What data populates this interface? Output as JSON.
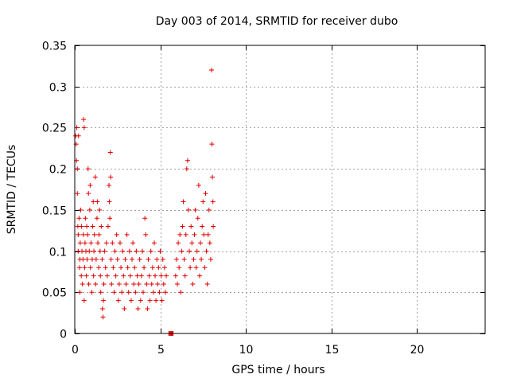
{
  "chart_data": {
    "type": "scatter",
    "title": "Day 003 of 2014, SRMTID for receiver dubo",
    "xlabel": "GPS time / hours",
    "ylabel": "SRMTID / TECUs",
    "xlim": [
      0,
      24
    ],
    "ylim": [
      0,
      0.35
    ],
    "xticks": [
      0,
      5,
      10,
      15,
      20
    ],
    "xtick_labels": [
      "0",
      "5",
      "10",
      "15",
      "20"
    ],
    "yticks": [
      0,
      0.05,
      0.1,
      0.15,
      0.2,
      0.25,
      0.3,
      0.35
    ],
    "ytick_labels": [
      "0",
      "0.05",
      "0.1",
      "0.15",
      "0.2",
      "0.25",
      "0.3",
      "0.35"
    ],
    "grid": true,
    "marker": "+",
    "color": "#e00000",
    "series": [
      {
        "name": "SRMTID",
        "points": [
          [
            0.05,
            0.24
          ],
          [
            0.08,
            0.23
          ],
          [
            0.1,
            0.21
          ],
          [
            0.12,
            0.25
          ],
          [
            0.15,
            0.2
          ],
          [
            0.15,
            0.17
          ],
          [
            0.18,
            0.13
          ],
          [
            0.2,
            0.1
          ],
          [
            0.2,
            0.12
          ],
          [
            0.22,
            0.24
          ],
          [
            0.25,
            0.14
          ],
          [
            0.28,
            0.08
          ],
          [
            0.3,
            0.05
          ],
          [
            0.3,
            0.09
          ],
          [
            0.32,
            0.11
          ],
          [
            0.35,
            0.15
          ],
          [
            0.38,
            0.07
          ],
          [
            0.4,
            0.13
          ],
          [
            0.42,
            0.1
          ],
          [
            0.45,
            0.06
          ],
          [
            0.48,
            0.09
          ],
          [
            0.5,
            0.12
          ],
          [
            0.52,
            0.26
          ],
          [
            0.55,
            0.25
          ],
          [
            0.55,
            0.04
          ],
          [
            0.58,
            0.08
          ],
          [
            0.6,
            0.11
          ],
          [
            0.62,
            0.14
          ],
          [
            0.65,
            0.1
          ],
          [
            0.68,
            0.07
          ],
          [
            0.7,
            0.13
          ],
          [
            0.72,
            0.09
          ],
          [
            0.75,
            0.12
          ],
          [
            0.78,
            0.2
          ],
          [
            0.8,
            0.17
          ],
          [
            0.82,
            0.06
          ],
          [
            0.85,
            0.1
          ],
          [
            0.88,
            0.15
          ],
          [
            0.9,
            0.18
          ],
          [
            0.92,
            0.08
          ],
          [
            0.95,
            0.11
          ],
          [
            1.0,
            0.05
          ],
          [
            1.02,
            0.09
          ],
          [
            1.05,
            0.13
          ],
          [
            1.08,
            0.16
          ],
          [
            1.1,
            0.07
          ],
          [
            1.12,
            0.1
          ],
          [
            1.15,
            0.12
          ],
          [
            1.2,
            0.19
          ],
          [
            1.22,
            0.06
          ],
          [
            1.25,
            0.09
          ],
          [
            1.3,
            0.14
          ],
          [
            1.32,
            0.16
          ],
          [
            1.35,
            0.11
          ],
          [
            1.4,
            0.08
          ],
          [
            1.42,
            0.12
          ],
          [
            1.45,
            0.15
          ],
          [
            1.48,
            0.1
          ],
          [
            1.5,
            0.07
          ],
          [
            1.52,
            0.05
          ],
          [
            1.55,
            0.13
          ],
          [
            1.6,
            0.09
          ],
          [
            1.62,
            0.03
          ],
          [
            1.65,
            0.02
          ],
          [
            1.68,
            0.04
          ],
          [
            1.7,
            0.06
          ],
          [
            1.75,
            0.1
          ],
          [
            1.8,
            0.08
          ],
          [
            1.85,
            0.11
          ],
          [
            1.9,
            0.07
          ],
          [
            1.95,
            0.13
          ],
          [
            2.0,
            0.18
          ],
          [
            2.02,
            0.16
          ],
          [
            2.05,
            0.14
          ],
          [
            2.08,
            0.22
          ],
          [
            2.1,
            0.19
          ],
          [
            2.12,
            0.09
          ],
          [
            2.15,
            0.06
          ],
          [
            2.2,
            0.11
          ],
          [
            2.25,
            0.08
          ],
          [
            2.3,
            0.05
          ],
          [
            2.35,
            0.1
          ],
          [
            2.4,
            0.07
          ],
          [
            2.45,
            0.12
          ],
          [
            2.5,
            0.09
          ],
          [
            2.55,
            0.04
          ],
          [
            2.6,
            0.06
          ],
          [
            2.65,
            0.11
          ],
          [
            2.7,
            0.08
          ],
          [
            2.75,
            0.05
          ],
          [
            2.8,
            0.1
          ],
          [
            2.85,
            0.07
          ],
          [
            2.9,
            0.03
          ],
          [
            2.95,
            0.09
          ],
          [
            3.0,
            0.06
          ],
          [
            3.05,
            0.12
          ],
          [
            3.1,
            0.08
          ],
          [
            3.15,
            0.05
          ],
          [
            3.2,
            0.1
          ],
          [
            3.25,
            0.07
          ],
          [
            3.3,
            0.04
          ],
          [
            3.35,
            0.09
          ],
          [
            3.4,
            0.11
          ],
          [
            3.45,
            0.06
          ],
          [
            3.5,
            0.08
          ],
          [
            3.55,
            0.05
          ],
          [
            3.6,
            0.1
          ],
          [
            3.65,
            0.07
          ],
          [
            3.7,
            0.03
          ],
          [
            3.75,
            0.06
          ],
          [
            3.8,
            0.09
          ],
          [
            3.85,
            0.04
          ],
          [
            3.9,
            0.07
          ],
          [
            3.95,
            0.1
          ],
          [
            4.0,
            0.05
          ],
          [
            4.05,
            0.08
          ],
          [
            4.1,
            0.14
          ],
          [
            4.15,
            0.12
          ],
          [
            4.2,
            0.06
          ],
          [
            4.25,
            0.03
          ],
          [
            4.3,
            0.09
          ],
          [
            4.35,
            0.07
          ],
          [
            4.4,
            0.04
          ],
          [
            4.45,
            0.1
          ],
          [
            4.5,
            0.06
          ],
          [
            4.55,
            0.08
          ],
          [
            4.6,
            0.05
          ],
          [
            4.65,
            0.11
          ],
          [
            4.7,
            0.07
          ],
          [
            4.75,
            0.04
          ],
          [
            4.8,
            0.09
          ],
          [
            4.85,
            0.06
          ],
          [
            4.9,
            0.08
          ],
          [
            4.95,
            0.05
          ],
          [
            5.0,
            0.1
          ],
          [
            5.05,
            0.07
          ],
          [
            5.1,
            0.04
          ],
          [
            5.15,
            0.09
          ],
          [
            5.2,
            0.06
          ],
          [
            5.25,
            0.08
          ],
          [
            5.3,
            0.05
          ],
          [
            5.35,
            0.07
          ],
          [
            5.5,
            0.0
          ],
          [
            5.55,
            0.0
          ],
          [
            5.6,
            0.0
          ],
          [
            5.65,
            0.0
          ],
          [
            5.7,
            0.0
          ],
          [
            5.75,
            0.0
          ],
          [
            5.9,
            0.07
          ],
          [
            5.95,
            0.09
          ],
          [
            6.0,
            0.06
          ],
          [
            6.05,
            0.11
          ],
          [
            6.1,
            0.08
          ],
          [
            6.15,
            0.12
          ],
          [
            6.2,
            0.05
          ],
          [
            6.25,
            0.1
          ],
          [
            6.3,
            0.13
          ],
          [
            6.35,
            0.16
          ],
          [
            6.4,
            0.09
          ],
          [
            6.45,
            0.07
          ],
          [
            6.5,
            0.12
          ],
          [
            6.55,
            0.2
          ],
          [
            6.6,
            0.21
          ],
          [
            6.65,
            0.15
          ],
          [
            6.7,
            0.1
          ],
          [
            6.75,
            0.08
          ],
          [
            6.8,
            0.13
          ],
          [
            6.85,
            0.11
          ],
          [
            6.9,
            0.06
          ],
          [
            6.95,
            0.09
          ],
          [
            7.0,
            0.12
          ],
          [
            7.05,
            0.15
          ],
          [
            7.1,
            0.08
          ],
          [
            7.15,
            0.1
          ],
          [
            7.2,
            0.14
          ],
          [
            7.25,
            0.18
          ],
          [
            7.3,
            0.07
          ],
          [
            7.35,
            0.11
          ],
          [
            7.4,
            0.09
          ],
          [
            7.45,
            0.13
          ],
          [
            7.5,
            0.16
          ],
          [
            7.55,
            0.12
          ],
          [
            7.6,
            0.08
          ],
          [
            7.65,
            0.17
          ],
          [
            7.7,
            0.1
          ],
          [
            7.75,
            0.06
          ],
          [
            7.8,
            0.12
          ],
          [
            7.85,
            0.15
          ],
          [
            7.9,
            0.11
          ],
          [
            7.95,
            0.09
          ],
          [
            8.0,
            0.32
          ],
          [
            8.02,
            0.23
          ],
          [
            8.05,
            0.19
          ],
          [
            8.08,
            0.16
          ],
          [
            8.1,
            0.13
          ]
        ]
      }
    ]
  }
}
